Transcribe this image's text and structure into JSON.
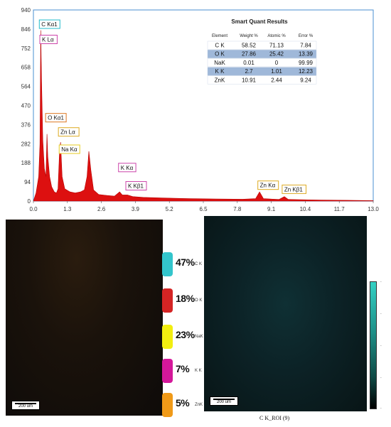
{
  "chart_data": {
    "type": "line",
    "x_ticks": [
      "0.0",
      "1.3",
      "2.6",
      "3.9",
      "5.2",
      "6.5",
      "7.8",
      "9.1",
      "10.4",
      "11.7",
      "13.0"
    ],
    "y_ticks": [
      "0",
      "94",
      "188",
      "282",
      "376",
      "470",
      "564",
      "658",
      "752",
      "846",
      "940"
    ],
    "xlim": [
      0,
      13
    ],
    "ylim": [
      0,
      940
    ],
    "grid": false,
    "spectrum": [
      [
        0.0,
        0
      ],
      [
        0.1,
        40
      ],
      [
        0.2,
        120
      ],
      [
        0.25,
        280
      ],
      [
        0.28,
        840
      ],
      [
        0.31,
        600
      ],
      [
        0.36,
        300
      ],
      [
        0.42,
        160
      ],
      [
        0.48,
        120
      ],
      [
        0.52,
        330
      ],
      [
        0.55,
        220
      ],
      [
        0.62,
        120
      ],
      [
        0.7,
        70
      ],
      [
        0.8,
        45
      ],
      [
        0.88,
        40
      ],
      [
        0.94,
        60
      ],
      [
        1.0,
        250
      ],
      [
        1.04,
        290
      ],
      [
        1.1,
        120
      ],
      [
        1.2,
        60
      ],
      [
        1.4,
        45
      ],
      [
        1.6,
        40
      ],
      [
        1.8,
        45
      ],
      [
        1.95,
        55
      ],
      [
        2.05,
        120
      ],
      [
        2.12,
        245
      ],
      [
        2.2,
        150
      ],
      [
        2.3,
        55
      ],
      [
        2.5,
        32
      ],
      [
        2.8,
        28
      ],
      [
        3.1,
        24
      ],
      [
        3.3,
        45
      ],
      [
        3.4,
        30
      ],
      [
        3.6,
        30
      ],
      [
        3.8,
        22
      ],
      [
        4.2,
        18
      ],
      [
        5.0,
        15
      ],
      [
        6.0,
        12
      ],
      [
        7.0,
        10
      ],
      [
        8.0,
        9
      ],
      [
        8.5,
        12
      ],
      [
        8.65,
        45
      ],
      [
        8.8,
        12
      ],
      [
        9.4,
        8
      ],
      [
        9.6,
        22
      ],
      [
        9.75,
        8
      ],
      [
        10.5,
        6
      ],
      [
        11.0,
        5
      ],
      [
        12.0,
        4
      ],
      [
        13.0,
        2
      ]
    ],
    "peak_labels": [
      {
        "label": "C Kα1",
        "x": 0.28,
        "y": 870,
        "color": "#22bbcc"
      },
      {
        "label": "K Lα",
        "x": 0.3,
        "y": 795,
        "color": "#cc44aa"
      },
      {
        "label": "O Kα1",
        "x": 0.52,
        "y": 410,
        "color": "#dd7722"
      },
      {
        "label": "Zn Lα",
        "x": 1.01,
        "y": 340,
        "color": "#ddaa22"
      },
      {
        "label": "Na Kα",
        "x": 1.04,
        "y": 255,
        "color": "#e6cc22"
      },
      {
        "label": "K Kα",
        "x": 3.31,
        "y": 165,
        "color": "#cc44aa"
      },
      {
        "label": "K Kβ1",
        "x": 3.59,
        "y": 75,
        "color": "#cc44aa"
      },
      {
        "label": "Zn Kα",
        "x": 8.64,
        "y": 78,
        "color": "#ddaa22"
      },
      {
        "label": "Zn Kβ1",
        "x": 9.57,
        "y": 58,
        "color": "#ddaa22"
      }
    ]
  },
  "quant_table": {
    "title": "Smart Quant Results",
    "headers": [
      "Element",
      "Weight %",
      "Atomic %",
      "Error %"
    ],
    "rows": [
      [
        "C K",
        "58.52",
        "71.13",
        "7.84"
      ],
      [
        "O K",
        "27.86",
        "25.42",
        "13.39"
      ],
      [
        "NaK",
        "0.01",
        "0",
        "99.99"
      ],
      [
        "K K",
        "2.7",
        "1.01",
        "12.23"
      ],
      [
        "ZnK",
        "10.91",
        "2.44",
        "9.24"
      ]
    ],
    "stripe_color": "#9fb8d9",
    "white_row_color": "#ffffff"
  },
  "legend": [
    {
      "pct": "47%",
      "element": "C K",
      "color": "#33c5cc"
    },
    {
      "pct": "18%",
      "element": "O K",
      "color": "#d42424"
    },
    {
      "pct": "23%",
      "element": "NaK",
      "color": "#f2ee10"
    },
    {
      "pct": "7%",
      "element": "K K",
      "color": "#d4189a"
    },
    {
      "pct": "5%",
      "element": "ZnK",
      "color": "#f09a18"
    }
  ],
  "maps": {
    "scale_left": "200 um",
    "scale_right": "200 um",
    "caption": "C K_ROI (9)"
  },
  "colorbar_ticks": [
    "-",
    "-",
    "-",
    "-",
    "-"
  ],
  "colors": {
    "spectrum_fill": "#dd1010",
    "frame": "#4a8fd0"
  }
}
